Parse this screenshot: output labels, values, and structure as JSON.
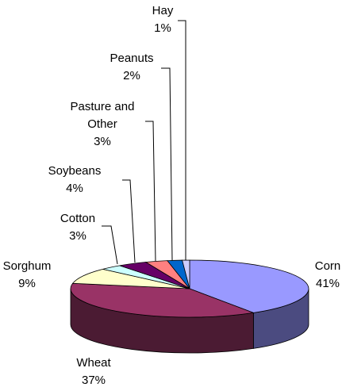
{
  "chart_data": {
    "type": "pie",
    "style": "3d",
    "start_angle_deg": 90,
    "direction": "clockwise",
    "slices": [
      {
        "label": "Corn",
        "percent_label": "41%",
        "value": 41,
        "color": "#9999FF",
        "side_color": "#4B4B80"
      },
      {
        "label": "Wheat",
        "percent_label": "37%",
        "value": 37,
        "color": "#993366",
        "side_color": "#4B1B33"
      },
      {
        "label": "Sorghum",
        "percent_label": "9%",
        "value": 9,
        "color": "#FFFFCC",
        "side_color": "#80806A"
      },
      {
        "label": "Cotton",
        "percent_label": "3%",
        "value": 3,
        "color": "#CCFFFF",
        "side_color": "#668080"
      },
      {
        "label": "Soybeans",
        "percent_label": "4%",
        "value": 4,
        "color": "#660066",
        "side_color": "#330033"
      },
      {
        "label": "Pasture and\nOther",
        "percent_label": "3%",
        "value": 3,
        "color": "#FF8080",
        "side_color": "#804040"
      },
      {
        "label": "Peanuts",
        "percent_label": "2%",
        "value": 2,
        "color": "#0066CC",
        "side_color": "#003366"
      },
      {
        "label": "Hay",
        "percent_label": "1%",
        "value": 1,
        "color": "#CCCCFF",
        "side_color": "#666680"
      }
    ]
  }
}
